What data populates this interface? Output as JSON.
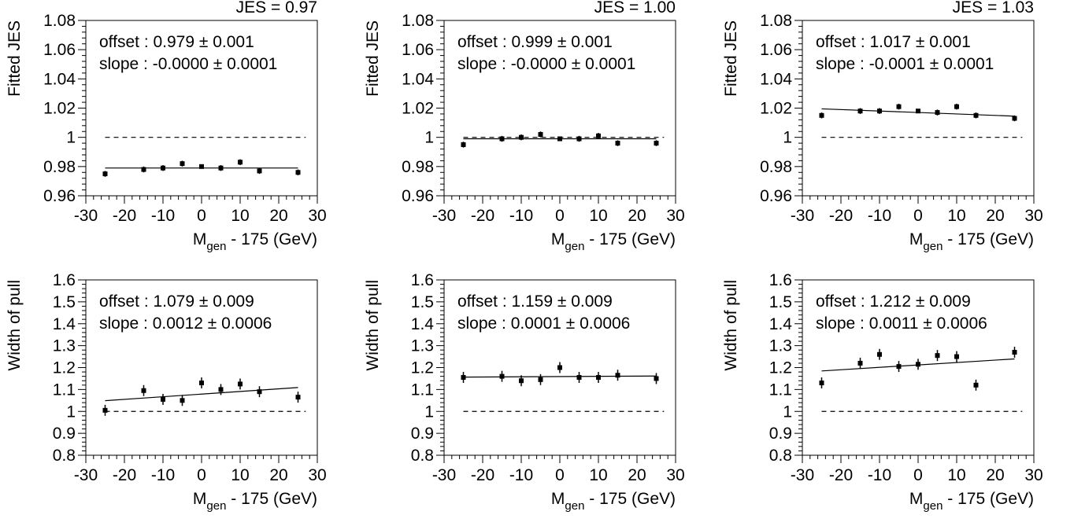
{
  "chart_data": [
    {
      "type": "scatter",
      "title": "JES = 0.97",
      "xlabel": "M",
      "xlabel_sub": "gen",
      "xlabel_suffix": " - 175 (GeV)",
      "ylabel": "Fitted JES",
      "xlim": [
        -30,
        30
      ],
      "ylim": [
        0.96,
        1.08
      ],
      "xticks": [
        -30,
        -20,
        -10,
        0,
        10,
        20,
        30
      ],
      "xtick_labels": [
        "-30",
        "-20",
        "-10",
        "0",
        "10",
        "20",
        "30"
      ],
      "yticks": [
        0.96,
        0.98,
        1,
        1.02,
        1.04,
        1.06,
        1.08
      ],
      "ytick_labels": [
        "0.96",
        "0.98",
        "1",
        "1.02",
        "1.04",
        "1.06",
        "1.08"
      ],
      "annotations": [
        "offset : 0.979 ± 0.001",
        "slope : -0.0000 ± 0.0001"
      ],
      "reference_line": 1,
      "fit": {
        "offset": 0.979,
        "slope": 0.0,
        "x": [
          -25,
          25
        ]
      },
      "points": {
        "x": [
          -25,
          -15,
          -10,
          -5,
          0,
          5,
          10,
          15,
          25
        ],
        "y": [
          0.975,
          0.978,
          0.979,
          0.982,
          0.98,
          0.979,
          0.983,
          0.977,
          0.976
        ],
        "err": [
          0.002,
          0.002,
          0.002,
          0.002,
          0.001,
          0.002,
          0.002,
          0.002,
          0.002
        ]
      }
    },
    {
      "type": "scatter",
      "title": "JES = 1.00",
      "xlabel": "M",
      "xlabel_sub": "gen",
      "xlabel_suffix": " - 175 (GeV)",
      "ylabel": "Fitted JES",
      "xlim": [
        -30,
        30
      ],
      "ylim": [
        0.96,
        1.08
      ],
      "xticks": [
        -30,
        -20,
        -10,
        0,
        10,
        20,
        30
      ],
      "xtick_labels": [
        "-30",
        "-20",
        "-10",
        "0",
        "10",
        "20",
        "30"
      ],
      "yticks": [
        0.96,
        0.98,
        1,
        1.02,
        1.04,
        1.06,
        1.08
      ],
      "ytick_labels": [
        "0.96",
        "0.98",
        "1",
        "1.02",
        "1.04",
        "1.06",
        "1.08"
      ],
      "annotations": [
        "offset : 0.999 ± 0.001",
        "slope : -0.0000 ± 0.0001"
      ],
      "reference_line": 1,
      "fit": {
        "offset": 0.999,
        "slope": 0.0,
        "x": [
          -25,
          25
        ]
      },
      "points": {
        "x": [
          -25,
          -15,
          -10,
          -5,
          0,
          5,
          10,
          15,
          25
        ],
        "y": [
          0.995,
          0.999,
          1.0,
          1.002,
          0.999,
          0.999,
          1.001,
          0.996,
          0.996
        ],
        "err": [
          0.002,
          0.002,
          0.002,
          0.002,
          0.001,
          0.002,
          0.002,
          0.002,
          0.002
        ]
      }
    },
    {
      "type": "scatter",
      "title": "JES = 1.03",
      "xlabel": "M",
      "xlabel_sub": "gen",
      "xlabel_suffix": " - 175 (GeV)",
      "ylabel": "Fitted JES",
      "xlim": [
        -30,
        30
      ],
      "ylim": [
        0.96,
        1.08
      ],
      "xticks": [
        -30,
        -20,
        -10,
        0,
        10,
        20,
        30
      ],
      "xtick_labels": [
        "-30",
        "-20",
        "-10",
        "0",
        "10",
        "20",
        "30"
      ],
      "yticks": [
        0.96,
        0.98,
        1,
        1.02,
        1.04,
        1.06,
        1.08
      ],
      "ytick_labels": [
        "0.96",
        "0.98",
        "1",
        "1.02",
        "1.04",
        "1.06",
        "1.08"
      ],
      "annotations": [
        "offset : 1.017 ± 0.001",
        "slope : -0.0001 ± 0.0001"
      ],
      "reference_line": 1,
      "fit": {
        "offset": 1.017,
        "slope": -0.0001,
        "x": [
          -25,
          25
        ]
      },
      "points": {
        "x": [
          -25,
          -15,
          -10,
          -5,
          0,
          5,
          10,
          15,
          25
        ],
        "y": [
          1.015,
          1.018,
          1.018,
          1.021,
          1.018,
          1.017,
          1.021,
          1.015,
          1.013
        ],
        "err": [
          0.002,
          0.002,
          0.002,
          0.002,
          0.001,
          0.002,
          0.002,
          0.002,
          0.002
        ]
      }
    },
    {
      "type": "scatter",
      "title": "",
      "xlabel": "M",
      "xlabel_sub": "gen",
      "xlabel_suffix": " - 175 (GeV)",
      "ylabel": "Width of pull",
      "xlim": [
        -30,
        30
      ],
      "ylim": [
        0.8,
        1.6
      ],
      "xticks": [
        -30,
        -20,
        -10,
        0,
        10,
        20,
        30
      ],
      "xtick_labels": [
        "-30",
        "-20",
        "-10",
        "0",
        "10",
        "20",
        "30"
      ],
      "yticks": [
        0.8,
        0.9,
        1,
        1.1,
        1.2,
        1.3,
        1.4,
        1.5,
        1.6
      ],
      "ytick_labels": [
        "0.8",
        "0.9",
        "1",
        "1.1",
        "1.2",
        "1.3",
        "1.4",
        "1.5",
        "1.6"
      ],
      "annotations": [
        "offset : 1.079 ± 0.009",
        "slope : 0.0012 ± 0.0006"
      ],
      "reference_line": 1,
      "fit": {
        "offset": 1.079,
        "slope": 0.0012,
        "x": [
          -25,
          25
        ]
      },
      "points": {
        "x": [
          -25,
          -15,
          -10,
          -5,
          0,
          5,
          10,
          15,
          25
        ],
        "y": [
          1.005,
          1.095,
          1.055,
          1.05,
          1.13,
          1.1,
          1.125,
          1.09,
          1.065
        ],
        "err": [
          0.025,
          0.025,
          0.025,
          0.025,
          0.025,
          0.025,
          0.025,
          0.025,
          0.025
        ]
      }
    },
    {
      "type": "scatter",
      "title": "",
      "xlabel": "M",
      "xlabel_sub": "gen",
      "xlabel_suffix": " - 175 (GeV)",
      "ylabel": "Width of pull",
      "xlim": [
        -30,
        30
      ],
      "ylim": [
        0.8,
        1.6
      ],
      "xticks": [
        -30,
        -20,
        -10,
        0,
        10,
        20,
        30
      ],
      "xtick_labels": [
        "-30",
        "-20",
        "-10",
        "0",
        "10",
        "20",
        "30"
      ],
      "yticks": [
        0.8,
        0.9,
        1,
        1.1,
        1.2,
        1.3,
        1.4,
        1.5,
        1.6
      ],
      "ytick_labels": [
        "0.8",
        "0.9",
        "1",
        "1.1",
        "1.2",
        "1.3",
        "1.4",
        "1.5",
        "1.6"
      ],
      "annotations": [
        "offset : 1.159 ± 0.009",
        "slope : 0.0001 ± 0.0006"
      ],
      "reference_line": 1,
      "fit": {
        "offset": 1.159,
        "slope": 0.0001,
        "x": [
          -25,
          25
        ]
      },
      "points": {
        "x": [
          -25,
          -15,
          -10,
          -5,
          0,
          5,
          10,
          15,
          25
        ],
        "y": [
          1.155,
          1.16,
          1.14,
          1.145,
          1.2,
          1.155,
          1.155,
          1.165,
          1.15
        ],
        "err": [
          0.025,
          0.025,
          0.025,
          0.025,
          0.025,
          0.025,
          0.025,
          0.025,
          0.025
        ]
      }
    },
    {
      "type": "scatter",
      "title": "",
      "xlabel": "M",
      "xlabel_sub": "gen",
      "xlabel_suffix": " - 175 (GeV)",
      "ylabel": "Width of pull",
      "xlim": [
        -30,
        30
      ],
      "ylim": [
        0.8,
        1.6
      ],
      "xticks": [
        -30,
        -20,
        -10,
        0,
        10,
        20,
        30
      ],
      "xtick_labels": [
        "-30",
        "-20",
        "-10",
        "0",
        "10",
        "20",
        "30"
      ],
      "yticks": [
        0.8,
        0.9,
        1,
        1.1,
        1.2,
        1.3,
        1.4,
        1.5,
        1.6
      ],
      "ytick_labels": [
        "0.8",
        "0.9",
        "1",
        "1.1",
        "1.2",
        "1.3",
        "1.4",
        "1.5",
        "1.6"
      ],
      "annotations": [
        "offset : 1.212 ± 0.009",
        "slope : 0.0011 ± 0.0006"
      ],
      "reference_line": 1,
      "fit": {
        "offset": 1.212,
        "slope": 0.0011,
        "x": [
          -25,
          25
        ]
      },
      "points": {
        "x": [
          -25,
          -15,
          -10,
          -5,
          0,
          5,
          10,
          15,
          25
        ],
        "y": [
          1.13,
          1.22,
          1.26,
          1.205,
          1.215,
          1.255,
          1.25,
          1.12,
          1.27
        ],
        "err": [
          0.025,
          0.025,
          0.025,
          0.025,
          0.025,
          0.025,
          0.025,
          0.025,
          0.025
        ]
      }
    }
  ]
}
